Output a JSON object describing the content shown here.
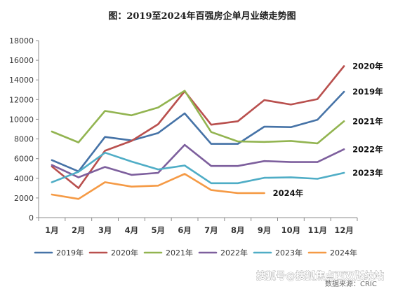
{
  "chart_data": {
    "type": "line",
    "title": "图：2019至2024年百强房企单月业绩走势图",
    "categories": [
      "1月",
      "2月",
      "3月",
      "4月",
      "5月",
      "6月",
      "7月",
      "8月",
      "9月",
      "10月",
      "11月",
      "12月"
    ],
    "yticks": [
      "0",
      "2000",
      "4000",
      "6000",
      "8000",
      "10000",
      "12000",
      "14000",
      "16000",
      "18000"
    ],
    "ylim": [
      0,
      18000
    ],
    "grid": false,
    "legend_position": "bottom",
    "series": [
      {
        "name": "2019年",
        "color": "#4673a7",
        "end_label": "2019年",
        "values": [
          5850,
          4700,
          8200,
          7850,
          8600,
          10600,
          7500,
          7500,
          9250,
          9200,
          9950,
          12800
        ]
      },
      {
        "name": "2020年",
        "color": "#b9504e",
        "end_label": "2020年",
        "values": [
          5200,
          3000,
          6800,
          7800,
          9500,
          12850,
          9450,
          9800,
          11950,
          11500,
          12050,
          15400
        ]
      },
      {
        "name": "2021年",
        "color": "#92b450",
        "end_label": "2021年",
        "values": [
          8750,
          7650,
          10850,
          10400,
          11200,
          12900,
          8700,
          7750,
          7700,
          7800,
          7550,
          9800
        ]
      },
      {
        "name": "2022年",
        "color": "#7d5f9d",
        "end_label": "2022年",
        "values": [
          5350,
          4100,
          5150,
          4350,
          4550,
          7400,
          5250,
          5250,
          5750,
          5650,
          5650,
          6950
        ]
      },
      {
        "name": "2023年",
        "color": "#4fadc6",
        "end_label": "2023年",
        "values": [
          3600,
          4650,
          6600,
          5700,
          4900,
          5300,
          3500,
          3500,
          4050,
          4100,
          3950,
          4550
        ]
      },
      {
        "name": "2024年",
        "color": "#f59a45",
        "end_label": "2024年",
        "values": [
          2350,
          1900,
          3600,
          3150,
          3250,
          4450,
          2800,
          2500,
          2500,
          null,
          null,
          null
        ]
      }
    ]
  },
  "watermark": {
    "text": "搜狐号@搜狐焦点西双版纳站",
    "source_text": "数据来源：CRIC"
  }
}
